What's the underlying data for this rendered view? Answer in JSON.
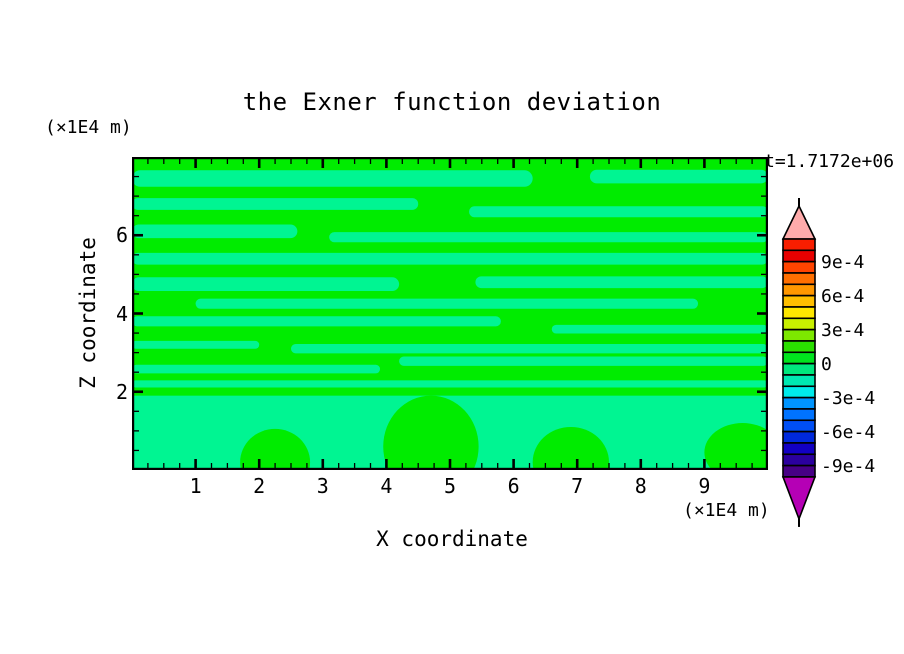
{
  "chart_data": {
    "type": "contour",
    "title": "the Exner function deviation",
    "xlabel": "X coordinate",
    "ylabel": "Z coordinate",
    "x_axis_unit": "(×1E4 m)",
    "y_axis_unit": "(×1E4 m)",
    "time_annotation": "t=1.7172e+06",
    "xlim": [
      0,
      10
    ],
    "ylim": [
      0,
      8
    ],
    "x_major_ticks": [
      1,
      2,
      3,
      4,
      5,
      6,
      7,
      8,
      9
    ],
    "x_minor_step": 0.25,
    "y_major_ticks": [
      2,
      4,
      6
    ],
    "y_minor_step": 0.5,
    "grid": false,
    "field": {
      "positive_color": "#00EC00",
      "negative_color": "#00F592",
      "negative_bands": [
        [
          0.0,
          6.3,
          7.45,
          0.42
        ],
        [
          7.2,
          10.0,
          7.5,
          0.35
        ],
        [
          0.0,
          4.5,
          6.8,
          0.3
        ],
        [
          5.3,
          10.0,
          6.6,
          0.28
        ],
        [
          0.0,
          2.6,
          6.1,
          0.35
        ],
        [
          3.1,
          10.0,
          5.95,
          0.26
        ],
        [
          0.0,
          10.0,
          5.4,
          0.3
        ],
        [
          0.0,
          4.2,
          4.75,
          0.35
        ],
        [
          5.4,
          10.0,
          4.8,
          0.3
        ],
        [
          1.0,
          8.9,
          4.25,
          0.26
        ],
        [
          0.0,
          5.8,
          3.8,
          0.26
        ],
        [
          6.6,
          10.0,
          3.6,
          0.22
        ],
        [
          0.0,
          2.0,
          3.2,
          0.2
        ],
        [
          2.5,
          10.0,
          3.1,
          0.24
        ],
        [
          4.2,
          10.0,
          2.78,
          0.24
        ],
        [
          0.0,
          3.9,
          2.58,
          0.22
        ],
        [
          0.0,
          10.0,
          2.2,
          0.18
        ]
      ],
      "negative_bottom_region_top": 1.9,
      "bottom_positive_blobs": [
        [
          2.25,
          0.2,
          0.55,
          0.85
        ],
        [
          4.7,
          0.6,
          0.75,
          1.3
        ],
        [
          6.9,
          0.2,
          0.6,
          0.9
        ],
        [
          9.6,
          0.45,
          0.6,
          0.75
        ]
      ]
    },
    "colorbar": {
      "labels": [
        "9e-4",
        "6e-4",
        "3e-4",
        "0",
        "-3e-4",
        "-6e-4",
        "-9e-4"
      ],
      "boundary_label_indices": [
        2,
        5,
        8,
        11,
        14,
        17,
        20
      ],
      "segment_colors": [
        "#F81E00",
        "#E80000",
        "#FF4400",
        "#FF6F00",
        "#FF9700",
        "#FFBF00",
        "#FFE700",
        "#C9F000",
        "#7DE800",
        "#2ADF00",
        "#00E41E",
        "#00E87D",
        "#00E9B2",
        "#00EBEB",
        "#0095FF",
        "#0073FF",
        "#004FF5",
        "#0029DC",
        "#1200C3",
        "#2B009E",
        "#470085"
      ],
      "over_arrow_color": "#FFABAB",
      "under_arrow_color": "#B500B5"
    }
  }
}
